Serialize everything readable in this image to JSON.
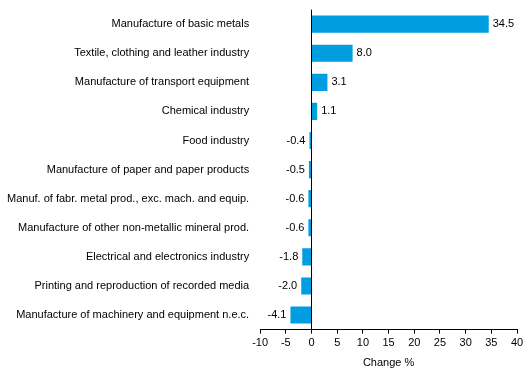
{
  "chart_data": {
    "type": "bar",
    "orientation": "horizontal",
    "x_label": "Change %",
    "categories": [
      "Manufacture of basic metals",
      "Textile, clothing and leather industry",
      "Manufacture of transport equipment",
      "Chemical industry",
      "Food industry",
      "Manufacture of paper and paper products",
      "Manuf. of fabr. metal prod., exc. mach. and equip.",
      "Manufacture of other non-metallic mineral prod.",
      "Electrical and electronics industry",
      "Printing and reproduction of recorded media",
      "Manufacture of machinery and equipment n.e.c."
    ],
    "values": [
      34.5,
      8.0,
      3.1,
      1.1,
      -0.4,
      -0.5,
      -0.6,
      -0.6,
      -1.8,
      -2.0,
      -4.1
    ],
    "value_labels": [
      "34.5",
      "8.0",
      "3.1",
      "1.1",
      "-0.4",
      "-0.5",
      "-0.6",
      "-0.6",
      "-1.8",
      "-2.0",
      "-4.1"
    ],
    "color": "#009ee0",
    "xlim": [
      -10,
      40
    ],
    "xticks": [
      -10,
      -5,
      0,
      5,
      10,
      15,
      20,
      25,
      30,
      35,
      40
    ],
    "grid": false,
    "data_labels": true
  }
}
